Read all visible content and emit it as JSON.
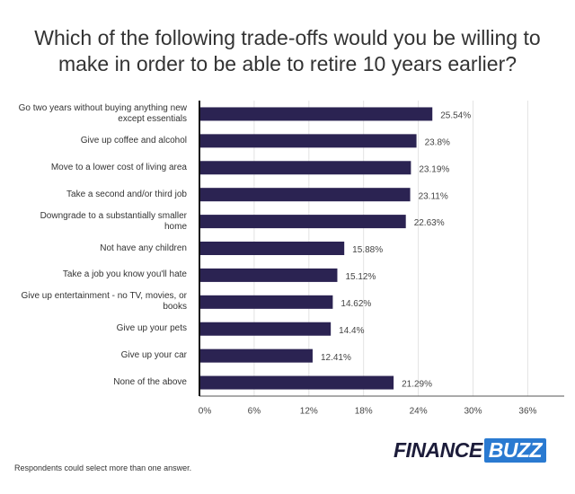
{
  "chart_data": {
    "type": "bar",
    "orientation": "horizontal",
    "title": "Which of the following trade-offs would you be willing to make in order to be able to retire 10 years earlier?",
    "categories": [
      "Go two years without buying anything new except essentials",
      "Give up coffee and alcohol",
      "Move to a lower cost of living area",
      "Take a second and/or third job",
      "Downgrade to a substantially smaller home",
      "Not have any children",
      "Take a job you know you'll hate",
      "Give up entertainment - no TV, movies, or books",
      "Give up your pets",
      "Give up your car",
      "None of the above"
    ],
    "values": [
      25.54,
      23.8,
      23.19,
      23.11,
      22.63,
      15.88,
      15.12,
      14.62,
      14.4,
      12.41,
      21.29
    ],
    "value_labels": [
      "25.54%",
      "23.8%",
      "23.19%",
      "23.11%",
      "22.63%",
      "15.88%",
      "15.12%",
      "14.62%",
      "14.4%",
      "12.41%",
      "21.29%"
    ],
    "color": "#2b2352",
    "xlim": [
      0,
      40
    ],
    "xticks": [
      {
        "value": 0,
        "label": "0%"
      },
      {
        "value": 6,
        "label": "6%"
      },
      {
        "value": 12,
        "label": "12%"
      },
      {
        "value": 18,
        "label": "18%"
      },
      {
        "value": 24,
        "label": "24%"
      },
      {
        "value": 30,
        "label": "30%"
      },
      {
        "value": 36,
        "label": "36%"
      }
    ],
    "grid": true,
    "footnote": "Respondents could select more than one answer.",
    "brand": [
      "FINANCE",
      "BUZZ"
    ]
  }
}
